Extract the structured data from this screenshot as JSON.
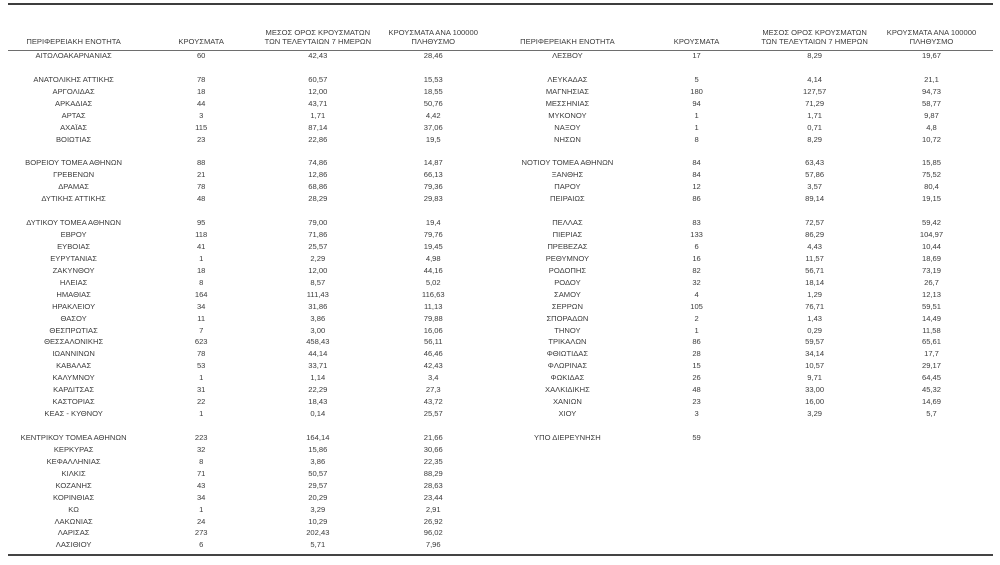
{
  "page": {
    "text_color": "#3c3c3c",
    "rule_color": "#3d3d3d",
    "background_color": "#ffffff"
  },
  "columns": [
    {
      "id": "region",
      "lines": [
        "ΠΕΡΙΦΕΡΕΙΑΚΗ ΕΝΟΤΗΤΑ"
      ]
    },
    {
      "id": "cases",
      "lines": [
        "ΚΡΟΥΣΜΑΤΑ"
      ]
    },
    {
      "id": "avg7",
      "lines": [
        "ΜΕΣΟΣ ΟΡΟΣ ΚΡΟΥΣΜΑΤΩΝ",
        "ΤΩΝ ΤΕΛΕΥΤΑΙΩΝ 7 ΗΜΕΡΩΝ"
      ]
    },
    {
      "id": "per100k",
      "lines": [
        "ΚΡΟΥΣΜΑΤΑ ΑΝΑ 100000",
        "ΠΛΗΘΥΣΜΟ"
      ]
    }
  ],
  "tables": [
    {
      "name": "left",
      "rows": [
        [
          "ΑΙΤΩΛΟΑΚΑΡΝΑΝΙΑΣ",
          "60",
          "42,43",
          "28,46"
        ],
        null,
        [
          "ΑΝΑΤΟΛΙΚΗΣ ΑΤΤΙΚΗΣ",
          "78",
          "60,57",
          "15,53"
        ],
        [
          "ΑΡΓΟΛΙΔΑΣ",
          "18",
          "12,00",
          "18,55"
        ],
        [
          "ΑΡΚΑΔΙΑΣ",
          "44",
          "43,71",
          "50,76"
        ],
        [
          "ΑΡΤΑΣ",
          "3",
          "1,71",
          "4,42"
        ],
        [
          "ΑΧΑΪΑΣ",
          "115",
          "87,14",
          "37,06"
        ],
        [
          "ΒΟΙΩΤΙΑΣ",
          "23",
          "22,86",
          "19,5"
        ],
        null,
        [
          "ΒΟΡΕΙΟΥ ΤΟΜΕΑ ΑΘΗΝΩΝ",
          "88",
          "74,86",
          "14,87"
        ],
        [
          "ΓΡΕΒΕΝΩΝ",
          "21",
          "12,86",
          "66,13"
        ],
        [
          "ΔΡΑΜΑΣ",
          "78",
          "68,86",
          "79,36"
        ],
        [
          "ΔΥΤΙΚΗΣ ΑΤΤΙΚΗΣ",
          "48",
          "28,29",
          "29,83"
        ],
        null,
        [
          "ΔΥΤΙΚΟΥ ΤΟΜΕΑ ΑΘΗΝΩΝ",
          "95",
          "79,00",
          "19,4"
        ],
        [
          "ΕΒΡΟΥ",
          "118",
          "71,86",
          "79,76"
        ],
        [
          "ΕΥΒΟΙΑΣ",
          "41",
          "25,57",
          "19,45"
        ],
        [
          "ΕΥΡΥΤΑΝΙΑΣ",
          "1",
          "2,29",
          "4,98"
        ],
        [
          "ΖΑΚΥΝΘΟΥ",
          "18",
          "12,00",
          "44,16"
        ],
        [
          "ΗΛΕΙΑΣ",
          "8",
          "8,57",
          "5,02"
        ],
        [
          "ΗΜΑΘΙΑΣ",
          "164",
          "111,43",
          "116,63"
        ],
        [
          "ΗΡΑΚΛΕΙΟΥ",
          "34",
          "31,86",
          "11,13"
        ],
        [
          "ΘΑΣΟΥ",
          "11",
          "3,86",
          "79,88"
        ],
        [
          "ΘΕΣΠΡΩΤΙΑΣ",
          "7",
          "3,00",
          "16,06"
        ],
        [
          "ΘΕΣΣΑΛΟΝΙΚΗΣ",
          "623",
          "458,43",
          "56,11"
        ],
        [
          "ΙΩΑΝΝΙΝΩΝ",
          "78",
          "44,14",
          "46,46"
        ],
        [
          "ΚΑΒΑΛΑΣ",
          "53",
          "33,71",
          "42,43"
        ],
        [
          "ΚΑΛΥΜΝΟΥ",
          "1",
          "1,14",
          "3,4"
        ],
        [
          "ΚΑΡΔΙΤΣΑΣ",
          "31",
          "22,29",
          "27,3"
        ],
        [
          "ΚΑΣΤΟΡΙΑΣ",
          "22",
          "18,43",
          "43,72"
        ],
        [
          "ΚΕΑΣ - ΚΥΘΝΟΥ",
          "1",
          "0,14",
          "25,57"
        ],
        null,
        [
          "ΚΕΝΤΡΙΚΟΥ ΤΟΜΕΑ ΑΘΗΝΩΝ",
          "223",
          "164,14",
          "21,66"
        ],
        [
          "ΚΕΡΚΥΡΑΣ",
          "32",
          "15,86",
          "30,66"
        ],
        [
          "ΚΕΦΑΛΛΗΝΙΑΣ",
          "8",
          "3,86",
          "22,35"
        ],
        [
          "ΚΙΛΚΙΣ",
          "71",
          "50,57",
          "88,29"
        ],
        [
          "ΚΟΖΑΝΗΣ",
          "43",
          "29,57",
          "28,63"
        ],
        [
          "ΚΟΡΙΝΘΙΑΣ",
          "34",
          "20,29",
          "23,44"
        ],
        [
          "ΚΩ",
          "1",
          "3,29",
          "2,91"
        ],
        [
          "ΛΑΚΩΝΙΑΣ",
          "24",
          "10,29",
          "26,92"
        ],
        [
          "ΛΑΡΙΣΑΣ",
          "273",
          "202,43",
          "96,02"
        ],
        [
          "ΛΑΣΙΘΙΟΥ",
          "6",
          "5,71",
          "7,96"
        ]
      ]
    },
    {
      "name": "right",
      "rows": [
        [
          "ΛΕΣΒΟΥ",
          "17",
          "8,29",
          "19,67"
        ],
        null,
        [
          "ΛΕΥΚΑΔΑΣ",
          "5",
          "4,14",
          "21,1"
        ],
        [
          "ΜΑΓΝΗΣΙΑΣ",
          "180",
          "127,57",
          "94,73"
        ],
        [
          "ΜΕΣΣΗΝΙΑΣ",
          "94",
          "71,29",
          "58,77"
        ],
        [
          "ΜΥΚΟΝΟΥ",
          "1",
          "1,71",
          "9,87"
        ],
        [
          "ΝΑΞΟΥ",
          "1",
          "0,71",
          "4,8"
        ],
        [
          "ΝΗΣΩΝ",
          "8",
          "8,29",
          "10,72"
        ],
        null,
        [
          "ΝΟΤΙΟΥ ΤΟΜΕΑ ΑΘΗΝΩΝ",
          "84",
          "63,43",
          "15,85"
        ],
        [
          "ΞΑΝΘΗΣ",
          "84",
          "57,86",
          "75,52"
        ],
        [
          "ΠΑΡΟΥ",
          "12",
          "3,57",
          "80,4"
        ],
        [
          "ΠΕΙΡΑΙΩΣ",
          "86",
          "89,14",
          "19,15"
        ],
        null,
        [
          "ΠΕΛΛΑΣ",
          "83",
          "72,57",
          "59,42"
        ],
        [
          "ΠΙΕΡΙΑΣ",
          "133",
          "86,29",
          "104,97"
        ],
        [
          "ΠΡΕΒΕΖΑΣ",
          "6",
          "4,43",
          "10,44"
        ],
        [
          "ΡΕΘΥΜΝΟΥ",
          "16",
          "11,57",
          "18,69"
        ],
        [
          "ΡΟΔΟΠΗΣ",
          "82",
          "56,71",
          "73,19"
        ],
        [
          "ΡΟΔΟΥ",
          "32",
          "18,14",
          "26,7"
        ],
        [
          "ΣΑΜΟΥ",
          "4",
          "1,29",
          "12,13"
        ],
        [
          "ΣΕΡΡΩΝ",
          "105",
          "76,71",
          "59,51"
        ],
        [
          "ΣΠΟΡΑΔΩΝ",
          "2",
          "1,43",
          "14,49"
        ],
        [
          "ΤΗΝΟΥ",
          "1",
          "0,29",
          "11,58"
        ],
        [
          "ΤΡΙΚΑΛΩΝ",
          "86",
          "59,57",
          "65,61"
        ],
        [
          "ΦΘΙΩΤΙΔΑΣ",
          "28",
          "34,14",
          "17,7"
        ],
        [
          "ΦΛΩΡΙΝΑΣ",
          "15",
          "10,57",
          "29,17"
        ],
        [
          "ΦΩΚΙΔΑΣ",
          "26",
          "9,71",
          "64,45"
        ],
        [
          "ΧΑΛΚΙΔΙΚΗΣ",
          "48",
          "33,00",
          "45,32"
        ],
        [
          "ΧΑΝΙΩΝ",
          "23",
          "16,00",
          "14,69"
        ],
        [
          "ΧΙΟΥ",
          "3",
          "3,29",
          "5,7"
        ],
        null,
        [
          "ΥΠΟ ΔΙΕΡΕΥΝΗΣΗ",
          "59",
          "",
          ""
        ]
      ]
    }
  ]
}
